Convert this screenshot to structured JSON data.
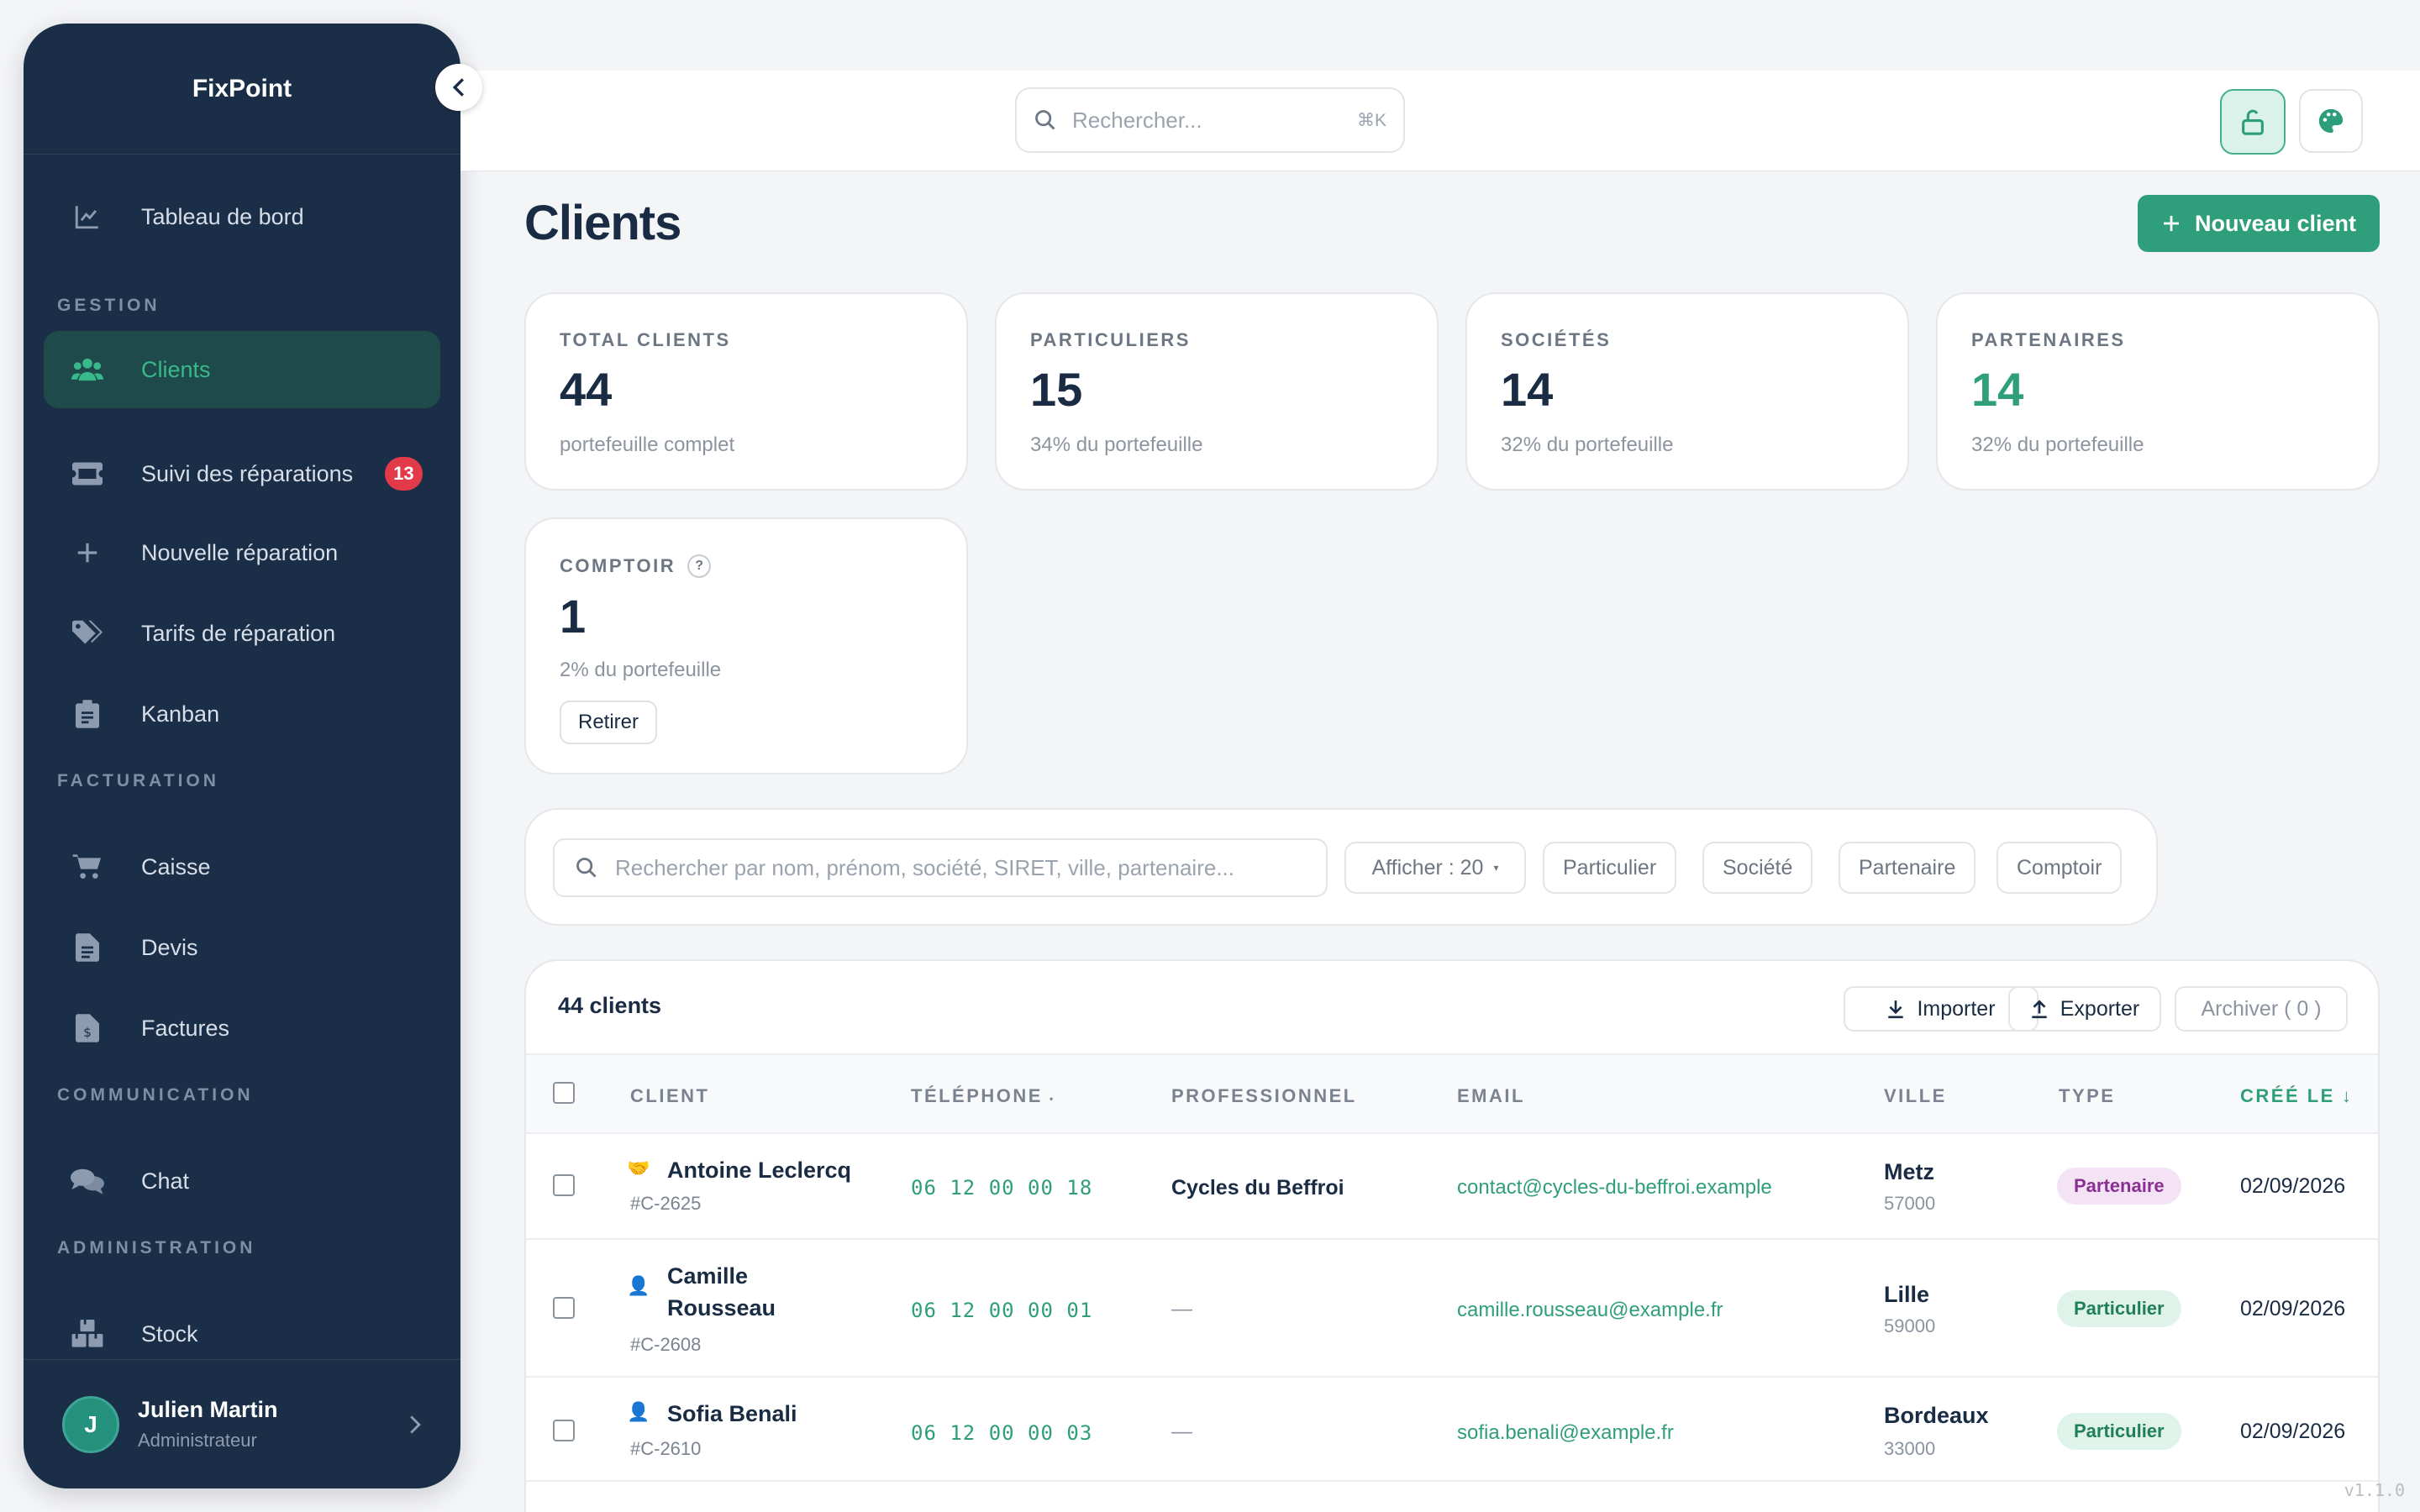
{
  "app": {
    "name": "FixPoint",
    "version": "v1.1.0"
  },
  "sidebar": {
    "items": [
      {
        "label": "Tableau de bord",
        "icon": "chart-line-icon"
      },
      {
        "label": "Clients",
        "icon": "users-icon",
        "active": true
      },
      {
        "label": "Suivi des réparations",
        "icon": "ticket-icon",
        "badge": "13"
      },
      {
        "label": "Nouvelle réparation",
        "icon": "plus-icon"
      },
      {
        "label": "Tarifs de réparation",
        "icon": "tags-icon"
      },
      {
        "label": "Kanban",
        "icon": "clipboard-icon"
      },
      {
        "label": "Caisse",
        "icon": "cart-icon"
      },
      {
        "label": "Devis",
        "icon": "document-icon"
      },
      {
        "label": "Factures",
        "icon": "invoice-icon"
      },
      {
        "label": "Chat",
        "icon": "chat-icon"
      },
      {
        "label": "Stock",
        "icon": "boxes-icon"
      }
    ],
    "sections": {
      "gestion": "GESTION",
      "facturation": "FACTURATION",
      "communication": "COMMUNICATION",
      "administration": "ADMINISTRATION"
    },
    "user": {
      "initial": "J",
      "name": "Julien Martin",
      "role": "Administrateur"
    }
  },
  "topbar": {
    "search_placeholder": "Rechercher...",
    "shortcut": "⌘K"
  },
  "page": {
    "title": "Clients",
    "new_button": "Nouveau client"
  },
  "stats": [
    {
      "label": "TOTAL CLIENTS",
      "value": "44",
      "sub": "portefeuille complet"
    },
    {
      "label": "PARTICULIERS",
      "value": "15",
      "sub": "34% du portefeuille"
    },
    {
      "label": "SOCIÉTÉS",
      "value": "14",
      "sub": "32% du portefeuille"
    },
    {
      "label": "PARTENAIRES",
      "value": "14",
      "sub": "32% du portefeuille",
      "accent": "#2f9e7a"
    },
    {
      "label": "COMPTOIR",
      "value": "1",
      "sub": "2% du portefeuille",
      "help": "?",
      "button": "Retirer"
    }
  ],
  "filters": {
    "search_placeholder": "Rechercher par nom, prénom, société, SIRET, ville, partenaire...",
    "show": "Afficher : 20",
    "chips": [
      "Particulier",
      "Société",
      "Partenaire",
      "Comptoir"
    ]
  },
  "table": {
    "count": "44 clients",
    "import": "Importer",
    "export": "Exporter",
    "archive": "Archiver ( 0 )",
    "columns": [
      "CLIENT",
      "TÉLÉPHONE",
      "PROFESSIONNEL",
      "EMAIL",
      "VILLE",
      "TYPE",
      "CRÉÉ LE"
    ],
    "rows": [
      {
        "icon": "🤝",
        "name": "Antoine Leclercq",
        "id": "#C-2625",
        "phone": "06 12 00 00 18",
        "pro": "Cycles du Beffroi",
        "email": "contact@cycles-du-beffroi.example",
        "city": "Metz",
        "zip": "57000",
        "type": "Partenaire",
        "date": "02/09/2026"
      },
      {
        "icon": "👤",
        "name": "Camille Rousseau",
        "name_line1": "Camille",
        "name_line2": "Rousseau",
        "id": "#C-2608",
        "phone": "06 12 00 00 01",
        "pro": "—",
        "email": "camille.rousseau@example.fr",
        "city": "Lille",
        "zip": "59000",
        "type": "Particulier",
        "date": "02/09/2026"
      },
      {
        "icon": "👤",
        "name": "Sofia Benali",
        "id": "#C-2610",
        "phone": "06 12 00 00 03",
        "pro": "—",
        "email": "sofia.benali@example.fr",
        "city": "Bordeaux",
        "zip": "33000",
        "type": "Particulier",
        "date": "02/09/2026"
      }
    ]
  }
}
